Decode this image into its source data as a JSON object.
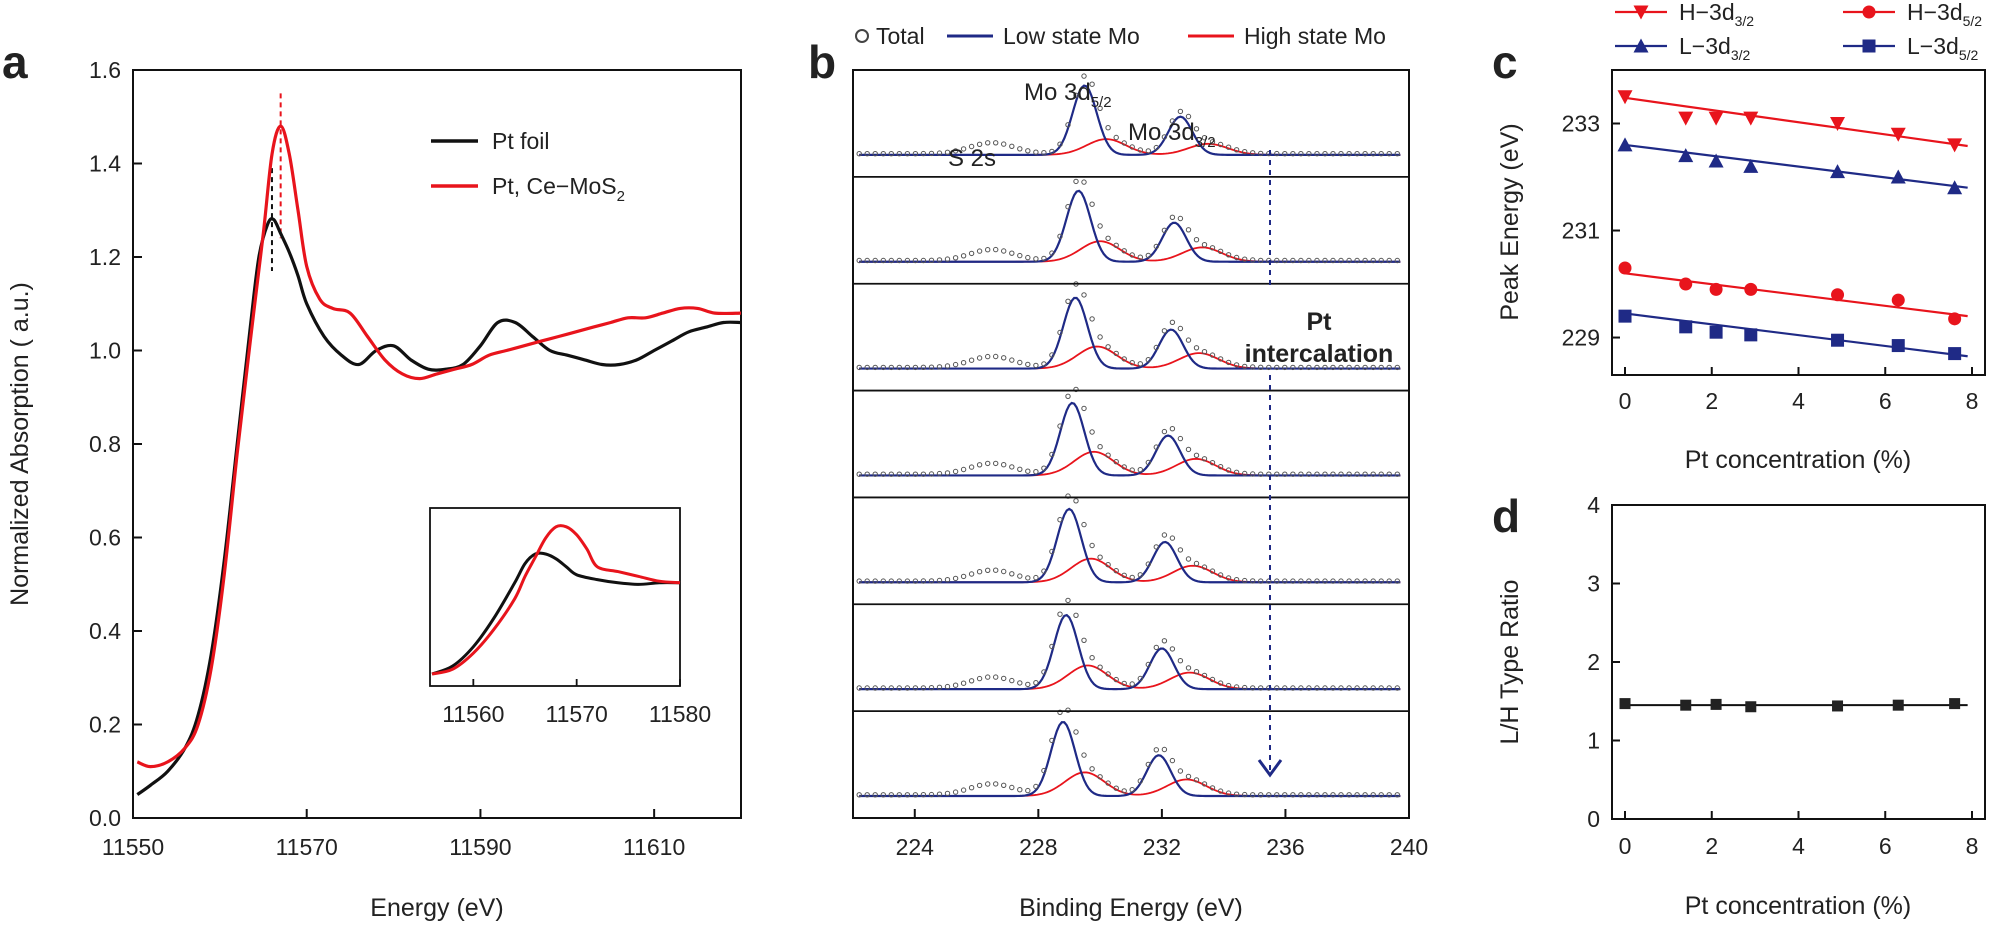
{
  "panel_letters": [
    "a",
    "b",
    "c",
    "d"
  ],
  "colors": {
    "black": "#111111",
    "red": "#e8141c",
    "blue": "#1f2a86",
    "navy_arrow": "#1f2a86"
  },
  "panel_b_annotations": {
    "s2s": "S 2s",
    "mo52_main": "Mo 3d",
    "mo52_sub": "5/2",
    "mo32_main": "Mo 3d",
    "mo32_sub": "3/2",
    "pt_line1": "Pt",
    "pt_line2": "intercalation"
  },
  "chart_data": [
    {
      "panel": "a",
      "type": "line",
      "xlabel": "Energy (eV)",
      "ylabel": "Normalized Absorption ( a.u.)",
      "xlim": [
        11550,
        11620
      ],
      "ylim": [
        0.0,
        1.6
      ],
      "xticks": [
        11550,
        11570,
        11590,
        11610
      ],
      "yticks": [
        "0.0",
        "0.2",
        "0.4",
        "0.6",
        "0.8",
        "1.0",
        "1.2",
        "1.4",
        "1.6"
      ],
      "legend_position": "top-right",
      "series": [
        {
          "name": "Pt foil",
          "color": "#111111",
          "x": [
            11550.5,
            11552,
            11554,
            11556,
            11557.5,
            11559,
            11560.5,
            11562,
            11563.5,
            11564.5,
            11565.5,
            11566.2,
            11567,
            11568,
            11569,
            11570,
            11572,
            11574,
            11576,
            11578,
            11580,
            11582,
            11584,
            11586,
            11588,
            11590,
            11592,
            11594,
            11596,
            11598,
            11600,
            11602,
            11604,
            11606,
            11608,
            11610,
            11612,
            11614,
            11616,
            11618,
            11620
          ],
          "y": [
            0.05,
            0.07,
            0.1,
            0.15,
            0.22,
            0.35,
            0.55,
            0.8,
            1.05,
            1.2,
            1.27,
            1.28,
            1.25,
            1.21,
            1.16,
            1.1,
            1.03,
            0.99,
            0.97,
            1.0,
            1.01,
            0.98,
            0.96,
            0.96,
            0.97,
            1.01,
            1.06,
            1.06,
            1.03,
            1.0,
            0.99,
            0.98,
            0.97,
            0.97,
            0.98,
            1.0,
            1.02,
            1.04,
            1.05,
            1.06,
            1.06
          ]
        },
        {
          "name": "Pt, Ce−MoS2",
          "color": "#e8141c",
          "x": [
            11550.5,
            11552,
            11554,
            11556,
            11557.5,
            11559,
            11560.5,
            11562,
            11563.5,
            11565,
            11566,
            11567,
            11568,
            11569,
            11570,
            11571.5,
            11573,
            11575,
            11577,
            11579,
            11581,
            11583,
            11585,
            11587,
            11589,
            11591,
            11593,
            11595,
            11597,
            11599,
            11601,
            11603,
            11605,
            11607,
            11609,
            11611,
            11613,
            11615,
            11617,
            11620
          ],
          "y": [
            0.12,
            0.11,
            0.12,
            0.15,
            0.2,
            0.32,
            0.52,
            0.78,
            1.02,
            1.25,
            1.42,
            1.48,
            1.42,
            1.3,
            1.18,
            1.11,
            1.09,
            1.08,
            1.03,
            0.98,
            0.95,
            0.94,
            0.95,
            0.96,
            0.97,
            0.99,
            1.0,
            1.01,
            1.02,
            1.03,
            1.04,
            1.05,
            1.06,
            1.07,
            1.07,
            1.08,
            1.09,
            1.09,
            1.08,
            1.08
          ]
        }
      ],
      "reference_markers": [
        {
          "x": 11566,
          "color": "#111111",
          "style": "dashed"
        },
        {
          "x": 11567,
          "color": "#e8141c",
          "style": "dashed"
        }
      ],
      "inset": {
        "xlim": [
          11556,
          11580
        ],
        "xticks": [
          11560,
          11570,
          11580
        ],
        "series": [
          {
            "name": "Pt foil",
            "color": "#111111",
            "x": [
              11556,
              11558,
              11560,
              11562,
              11564,
              11565,
              11566,
              11567,
              11568,
              11569,
              11570,
              11572,
              11574,
              11576,
              11578,
              11580
            ],
            "y": [
              0.05,
              0.1,
              0.22,
              0.4,
              0.62,
              0.74,
              0.8,
              0.8,
              0.77,
              0.72,
              0.67,
              0.64,
              0.62,
              0.61,
              0.62,
              0.62
            ]
          },
          {
            "name": "Pt, Ce−MoS2",
            "color": "#e8141c",
            "x": [
              11556,
              11558,
              11560,
              11562,
              11564,
              11565,
              11566,
              11567,
              11568,
              11569,
              11570,
              11571,
              11572,
              11574,
              11576,
              11578,
              11580
            ],
            "y": [
              0.05,
              0.08,
              0.18,
              0.33,
              0.52,
              0.66,
              0.78,
              0.9,
              0.97,
              0.97,
              0.92,
              0.83,
              0.72,
              0.69,
              0.66,
              0.63,
              0.62
            ]
          }
        ]
      }
    },
    {
      "panel": "b",
      "type": "line",
      "xlabel": "Binding Energy (eV)",
      "xlim": [
        222,
        240
      ],
      "xticks": [
        224,
        228,
        232,
        236,
        240
      ],
      "legend_position": "top",
      "legend": [
        {
          "name": "Total",
          "marker": "open-circle",
          "color": "#444444"
        },
        {
          "name": "Low state Mo",
          "color": "#1f2a86"
        },
        {
          "name": "High state Mo",
          "color": "#e8141c"
        }
      ],
      "stacked_spectra": [
        {
          "low_52": 229.5,
          "low_32": 232.6,
          "high_52": 230.2,
          "high_32": 233.5,
          "h_low": 0.88,
          "h_high": 0.2
        },
        {
          "low_52": 229.3,
          "low_32": 232.4,
          "high_52": 230.0,
          "high_32": 233.3,
          "h_low": 0.9,
          "h_high": 0.26
        },
        {
          "low_52": 229.2,
          "low_32": 232.3,
          "high_52": 229.9,
          "high_32": 233.2,
          "h_low": 0.9,
          "h_high": 0.28
        },
        {
          "low_52": 229.1,
          "low_32": 232.2,
          "high_52": 229.8,
          "high_32": 233.1,
          "h_low": 0.92,
          "h_high": 0.3
        },
        {
          "low_52": 229.0,
          "low_32": 232.1,
          "high_52": 229.7,
          "high_32": 233.0,
          "h_low": 0.93,
          "h_high": 0.3
        },
        {
          "low_52": 228.9,
          "low_32": 232.0,
          "high_52": 229.6,
          "high_32": 232.9,
          "h_low": 0.94,
          "h_high": 0.3
        },
        {
          "low_52": 228.8,
          "low_32": 231.9,
          "high_52": 229.5,
          "high_32": 232.8,
          "h_low": 0.94,
          "h_high": 0.3
        }
      ],
      "s2s_peak": 226.5,
      "arrow": {
        "x": 235.5
      }
    },
    {
      "panel": "c",
      "type": "scatter",
      "xlabel": "Pt concentration (%)",
      "ylabel": "Peak Energy (eV)",
      "xlim": [
        -0.3,
        8.3
      ],
      "ylim": [
        228.3,
        234.0
      ],
      "xticks": [
        0,
        2,
        4,
        6,
        8
      ],
      "yticks": [
        229,
        231,
        233
      ],
      "x": [
        0,
        1.4,
        2.1,
        2.9,
        4.9,
        6.3,
        7.6
      ],
      "series": [
        {
          "name": "H−3d",
          "sub": "3/2",
          "color": "#e8141c",
          "marker": "triangle-down",
          "values": [
            233.5,
            233.1,
            233.1,
            233.1,
            233.0,
            232.8,
            232.6
          ],
          "fit": [
            233.48,
            232.58
          ]
        },
        {
          "name": "H−3d",
          "sub": "5/2",
          "color": "#e8141c",
          "marker": "circle",
          "values": [
            230.3,
            230.0,
            229.9,
            229.9,
            229.8,
            229.7,
            229.35
          ],
          "fit": [
            230.2,
            229.4
          ]
        },
        {
          "name": "L−3d",
          "sub": "3/2",
          "color": "#1f2a86",
          "marker": "triangle-up",
          "values": [
            232.6,
            232.4,
            232.3,
            232.2,
            232.1,
            232.0,
            231.8
          ],
          "fit": [
            232.6,
            231.8
          ]
        },
        {
          "name": "L−3d",
          "sub": "5/2",
          "color": "#1f2a86",
          "marker": "square",
          "values": [
            229.4,
            229.2,
            229.1,
            229.05,
            228.95,
            228.85,
            228.7
          ],
          "fit": [
            229.45,
            228.65
          ]
        }
      ]
    },
    {
      "panel": "d",
      "type": "scatter",
      "xlabel": "Pt concentration (%)",
      "ylabel": "L/H Type Ratio",
      "xlim": [
        -0.3,
        8.3
      ],
      "ylim": [
        0,
        4
      ],
      "xticks": [
        0,
        2,
        4,
        6,
        8
      ],
      "yticks": [
        0,
        1,
        2,
        3,
        4
      ],
      "x": [
        0,
        1.4,
        2.1,
        2.9,
        4.9,
        6.3,
        7.6
      ],
      "values": [
        1.47,
        1.45,
        1.46,
        1.43,
        1.44,
        1.45,
        1.47
      ],
      "fit": [
        1.45,
        1.45
      ]
    }
  ]
}
